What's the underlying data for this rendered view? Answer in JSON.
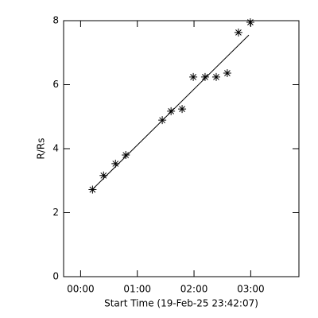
{
  "chart_data": {
    "type": "scatter",
    "xlabel": "Start Time (19-Feb-25 23:42:07)",
    "ylabel": "R/Rs",
    "x": [
      12.6,
      24.3,
      36.9,
      47.8,
      86.4,
      95.7,
      107.4,
      119.2,
      131.7,
      143.5,
      155.2,
      167.0,
      179.6
    ],
    "y": [
      2.72,
      3.16,
      3.53,
      3.8,
      4.89,
      5.17,
      5.24,
      6.24,
      6.24,
      6.24,
      6.36,
      7.63,
      7.95
    ],
    "fit": {
      "x": [
        12.6,
        178
      ],
      "y": [
        2.73,
        7.55
      ]
    },
    "color": "#000000",
    "xlim": [
      -18,
      231
    ],
    "xticks": [
      {
        "value": 0,
        "label": "00:00"
      },
      {
        "value": 60,
        "label": "01:00"
      },
      {
        "value": 120,
        "label": "02:00"
      },
      {
        "value": 180,
        "label": "03:00"
      }
    ],
    "ylim": [
      0,
      8
    ],
    "yticks": [
      0,
      2,
      4,
      6,
      8
    ]
  }
}
